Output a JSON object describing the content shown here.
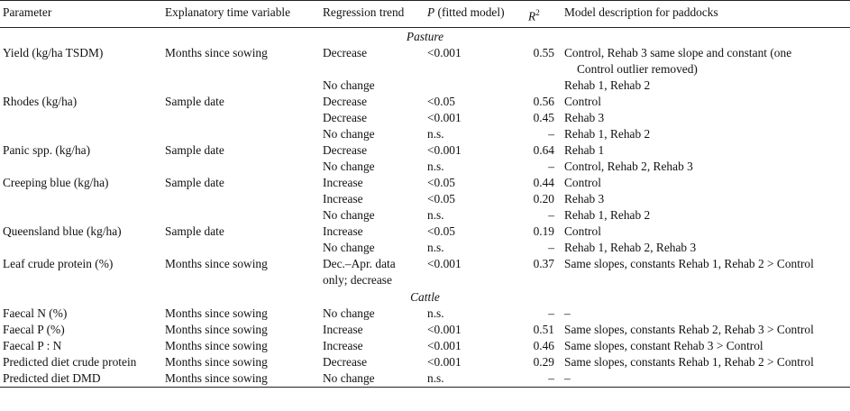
{
  "headers": {
    "parameter": "Parameter",
    "time_variable": "Explanatory time variable",
    "trend": "Regression trend",
    "p_label": "P",
    "p_suffix": " (fitted model)",
    "r2_base": "R",
    "r2_sup": "2",
    "description": "Model description for paddocks"
  },
  "sections": [
    {
      "title": "Pasture",
      "rows": [
        {
          "parameter": "Yield (kg/ha TSDM)",
          "time": "Months since sowing",
          "trend": "Decrease",
          "p": "<0.001",
          "r2": "0.55",
          "desc": "Control, Rehab 3 same slope and constant (one",
          "desc2": "Control outlier removed)"
        },
        {
          "parameter": "",
          "time": "",
          "trend": "No change",
          "p": "",
          "r2": "",
          "desc": "Rehab 1, Rehab 2"
        },
        {
          "parameter": "Rhodes (kg/ha)",
          "time": "Sample date",
          "trend": "Decrease",
          "p": "<0.05",
          "r2": "0.56",
          "desc": "Control"
        },
        {
          "parameter": "",
          "time": "",
          "trend": "Decrease",
          "p": "<0.001",
          "r2": "0.45",
          "desc": "Rehab 3"
        },
        {
          "parameter": "",
          "time": "",
          "trend": "No change",
          "p": "n.s.",
          "r2": "–",
          "desc": "Rehab 1, Rehab 2"
        },
        {
          "parameter": "Panic spp. (kg/ha)",
          "time": "Sample date",
          "trend": "Decrease",
          "p": "<0.001",
          "r2": "0.64",
          "desc": "Rehab 1"
        },
        {
          "parameter": "",
          "time": "",
          "trend": "No change",
          "p": "n.s.",
          "r2": "–",
          "desc": "Control, Rehab 2, Rehab 3"
        },
        {
          "parameter": "Creeping blue (kg/ha)",
          "time": "Sample date",
          "trend": "Increase",
          "p": "<0.05",
          "r2": "0.44",
          "desc": "Control"
        },
        {
          "parameter": "",
          "time": "",
          "trend": "Increase",
          "p": "<0.05",
          "r2": "0.20",
          "desc": "Rehab 3"
        },
        {
          "parameter": "",
          "time": "",
          "trend": "No change",
          "p": "n.s.",
          "r2": "–",
          "desc": "Rehab 1, Rehab 2"
        },
        {
          "parameter": "Queensland blue (kg/ha)",
          "time": "Sample date",
          "trend": "Increase",
          "p": "<0.05",
          "r2": "0.19",
          "desc": "Control"
        },
        {
          "parameter": "",
          "time": "",
          "trend": "No change",
          "p": "n.s.",
          "r2": "–",
          "desc": "Rehab 1, Rehab 2, Rehab 3"
        },
        {
          "parameter": "Leaf crude protein (%)",
          "time": "Months since sowing",
          "trend": "Dec.–Apr. data",
          "trend2": "only; decrease",
          "p": "<0.001",
          "r2": "0.37",
          "desc": "Same slopes, constants Rehab 1, Rehab 2 > Control"
        }
      ]
    },
    {
      "title": "Cattle",
      "rows": [
        {
          "parameter": "Faecal N (%)",
          "time": "Months since sowing",
          "trend": "No change",
          "p": "n.s.",
          "r2": "–",
          "desc": "–"
        },
        {
          "parameter": "Faecal P (%)",
          "time": "Months since sowing",
          "trend": "Increase",
          "p": "<0.001",
          "r2": "0.51",
          "desc": "Same slopes, constants Rehab 2, Rehab 3 > Control"
        },
        {
          "parameter": "Faecal P : N",
          "time": "Months since sowing",
          "trend": "Increase",
          "p": "<0.001",
          "r2": "0.46",
          "desc": "Same slopes, constant Rehab 3 > Control"
        },
        {
          "parameter": "Predicted diet crude protein",
          "time": "Months since sowing",
          "trend": "Decrease",
          "p": "<0.001",
          "r2": "0.29",
          "desc": "Same slopes, constants Rehab 1, Rehab 2 > Control"
        },
        {
          "parameter": "Predicted diet DMD",
          "time": "Months since sowing",
          "trend": "No change",
          "p": "n.s.",
          "r2": "–",
          "desc": "–"
        }
      ]
    }
  ]
}
